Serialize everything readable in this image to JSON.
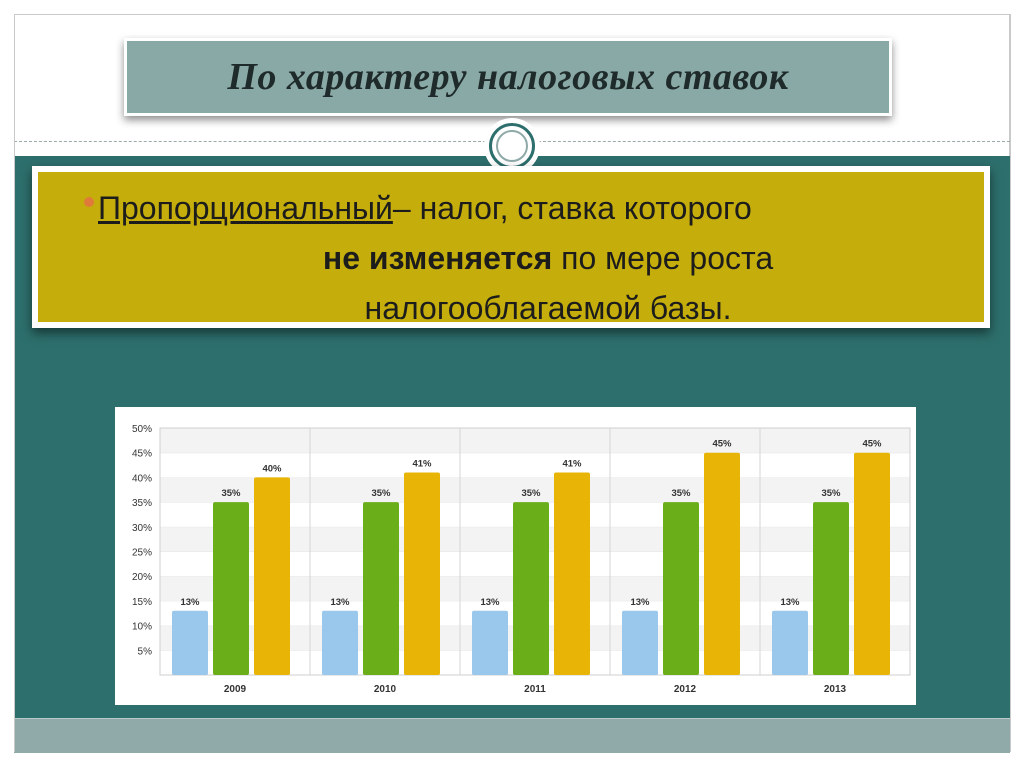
{
  "slide": {
    "title": "По характеру налоговых ставок",
    "bullet": {
      "term": "Пропорциональный",
      "after_term": "– налог,  ставка  которого",
      "bold": "не изменяется",
      "after_bold": " по мере роста",
      "line3": "налогооблагаемой базы."
    }
  },
  "colors": {
    "teal": "#2d6f6c",
    "title_bg": "#89a9a7",
    "content_bg": "#c5ae0b",
    "bullet": "#e07a3a",
    "series_blue": "#9ac8ec",
    "series_green": "#6aae1a",
    "series_yellow": "#e8b406"
  },
  "chart_data": {
    "type": "bar",
    "categories": [
      "2009",
      "2010",
      "2011",
      "2012",
      "2013"
    ],
    "series": [
      {
        "values": [
          13,
          13,
          13,
          13,
          13
        ],
        "labels": [
          "13%",
          "13%",
          "13%",
          "13%",
          "13%"
        ],
        "color": "#9ac8ec"
      },
      {
        "values": [
          35,
          35,
          35,
          35,
          35
        ],
        "labels": [
          "35%",
          "35%",
          "35%",
          "35%",
          "35%"
        ],
        "color": "#6aae1a"
      },
      {
        "values": [
          40,
          41,
          41,
          45,
          45
        ],
        "labels": [
          "40%",
          "41%",
          "41%",
          "45%",
          "45%"
        ],
        "color": "#e8b406"
      }
    ],
    "yticks": [
      "50%",
      "45%",
      "40%",
      "35%",
      "30%",
      "25%",
      "20%",
      "15%",
      "10%",
      "5%"
    ],
    "ylim": [
      0,
      50
    ],
    "grid": "banded-horizontal",
    "legend": "none"
  }
}
